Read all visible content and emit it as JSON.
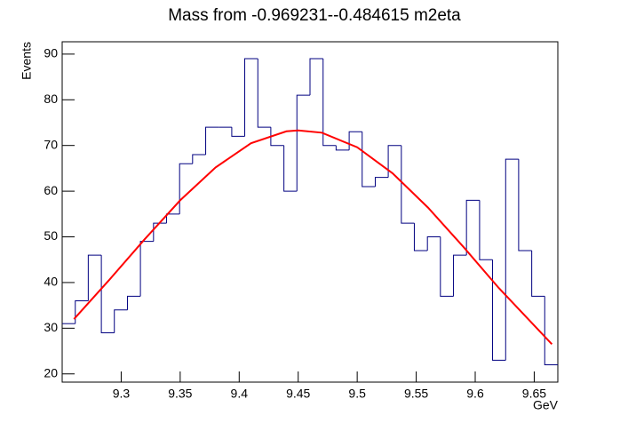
{
  "chart_data": {
    "type": "histogram",
    "title": "Mass from -0.969231--0.484615 m2eta",
    "x_label": "GeV",
    "y_label": "Events",
    "color": "#000080",
    "bins": [
      9.25,
      9.2611,
      9.2721,
      9.2832,
      9.2942,
      9.3053,
      9.3163,
      9.3274,
      9.3384,
      9.3495,
      9.3605,
      9.3716,
      9.3826,
      9.3937,
      9.4047,
      9.4158,
      9.4268,
      9.4379,
      9.4489,
      9.46,
      9.4711,
      9.4821,
      9.4932,
      9.5042,
      9.5153,
      9.5263,
      9.5374,
      9.5484,
      9.5595,
      9.5705,
      9.5816,
      9.5926,
      9.6037,
      9.6147,
      9.6258,
      9.6368,
      9.6479,
      9.6589,
      9.67
    ],
    "values": [
      31,
      36,
      46,
      29,
      34,
      37,
      49,
      53,
      55,
      66,
      68,
      74,
      74,
      72,
      89,
      74,
      70,
      60,
      81,
      89,
      70,
      69,
      73,
      61,
      63,
      70,
      53,
      47,
      50,
      37,
      46,
      58,
      45,
      23,
      67,
      47,
      37,
      22
    ],
    "fit": {
      "color": "#ff0000",
      "x": [
        9.26,
        9.29,
        9.32,
        9.35,
        9.38,
        9.41,
        9.44,
        9.45,
        9.47,
        9.5,
        9.53,
        9.56,
        9.59,
        9.62,
        9.665
      ],
      "values": [
        32.0,
        40.6,
        49.5,
        58.0,
        65.2,
        70.5,
        73.1,
        73.3,
        72.8,
        69.6,
        63.9,
        56.4,
        47.8,
        38.8,
        26.5
      ]
    },
    "xlim": [
      9.25,
      9.67
    ],
    "ylim": [
      18.2,
      92.7
    ],
    "xticks": [
      9.3,
      9.35,
      9.4,
      9.45,
      9.5,
      9.55,
      9.6,
      9.65
    ],
    "yticks": [
      20,
      30,
      40,
      50,
      60,
      70,
      80,
      90
    ]
  }
}
